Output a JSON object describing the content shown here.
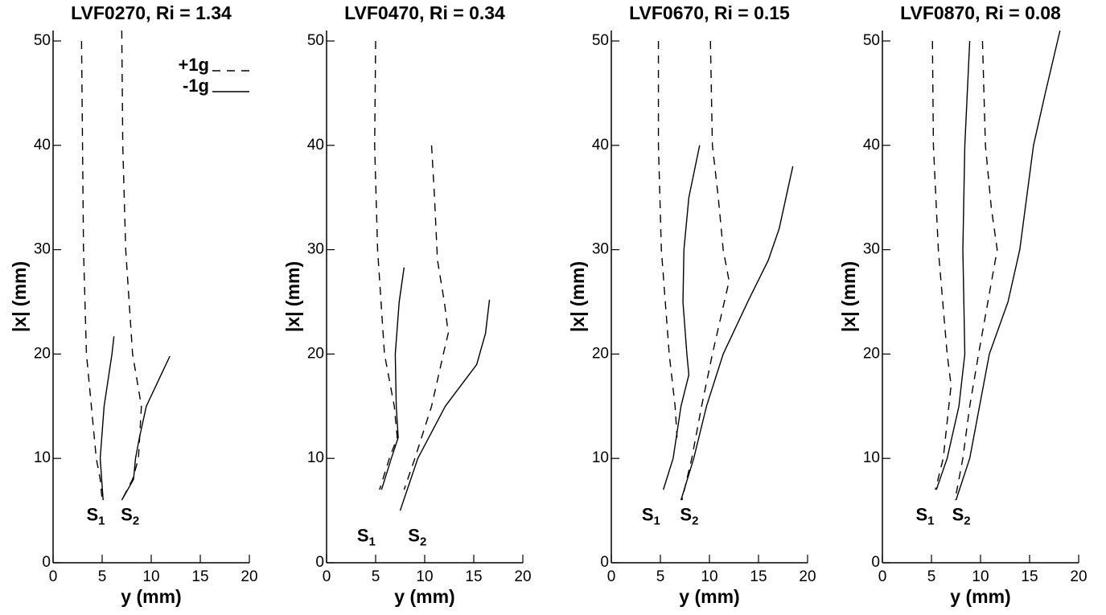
{
  "chart_data": [
    {
      "type": "line",
      "title": "LVF0270, Ri = 1.34",
      "xlabel": "y (mm)",
      "ylabel": "|x| (mm)",
      "xlim": [
        0,
        20
      ],
      "ylim": [
        0,
        51
      ],
      "xticks": [
        0,
        5,
        10,
        15,
        20
      ],
      "yticks": [
        0,
        10,
        20,
        30,
        40,
        50
      ],
      "legend": "top-right",
      "series": [
        {
          "name": "+1g",
          "color": "#000000",
          "dash": true,
          "x": [
            2.9,
            3.0,
            3.1,
            3.4,
            3.9,
            4.4,
            4.8,
            5.0
          ],
          "values": [
            50,
            40,
            30,
            20,
            15,
            10,
            8,
            6
          ]
        },
        {
          "color": "#000000",
          "dash": true,
          "x": [
            7.0,
            7.1,
            7.4,
            8.1,
            9.0,
            8.7,
            8.1,
            7.0
          ],
          "values": [
            51,
            40,
            30,
            20,
            15,
            10,
            8,
            6
          ]
        },
        {
          "name": "-1g",
          "color": "#000000",
          "dash": false,
          "x": [
            6.2,
            6.0,
            5.2,
            4.8,
            5.1
          ],
          "values": [
            21.7,
            20,
            15,
            10,
            6
          ]
        },
        {
          "color": "#000000",
          "dash": false,
          "x": [
            11.9,
            11.0,
            9.5,
            8.8,
            8.4,
            8.2,
            7.0
          ],
          "values": [
            19.8,
            18,
            15,
            12,
            10,
            8,
            6
          ]
        }
      ],
      "annotations": [
        {
          "text": "S",
          "subscript": "1",
          "x": 3.4,
          "y": 4.5
        },
        {
          "text": "S",
          "subscript": "2",
          "x": 6.9,
          "y": 4.5
        }
      ]
    },
    {
      "type": "line",
      "title": "LVF0470, Ri = 0.34",
      "xlabel": "y (mm)",
      "ylabel": "|x| (mm)",
      "xlim": [
        0,
        20
      ],
      "ylim": [
        0,
        51
      ],
      "xticks": [
        0,
        5,
        10,
        15,
        20
      ],
      "yticks": [
        0,
        10,
        20,
        30,
        40,
        50
      ],
      "series": [
        {
          "color": "#000000",
          "dash": true,
          "x": [
            5.0,
            4.9,
            5.2,
            5.9,
            6.9,
            7.2,
            6.4,
            5.4
          ],
          "values": [
            50,
            40,
            30,
            20,
            15,
            12,
            10,
            7
          ]
        },
        {
          "color": "#000000",
          "dash": false,
          "x": [
            7.9,
            7.4,
            7.0,
            7.1,
            7.3,
            6.6,
            5.6
          ],
          "values": [
            28.3,
            25,
            20,
            15,
            12,
            10,
            7
          ]
        },
        {
          "color": "#000000",
          "dash": true,
          "x": [
            10.7,
            11.0,
            11.3,
            12.0,
            12.4,
            11.9,
            10.7,
            9.0,
            7.9
          ],
          "values": [
            40,
            35,
            29,
            25,
            22,
            20,
            15,
            10,
            7
          ]
        },
        {
          "color": "#000000",
          "dash": false,
          "x": [
            16.6,
            16.2,
            15.3,
            13.7,
            12.1,
            9.3,
            7.5
          ],
          "values": [
            25.2,
            22,
            19,
            17,
            15,
            10,
            5
          ]
        }
      ],
      "annotations": [
        {
          "text": "S",
          "subscript": "1",
          "x": 3.1,
          "y": 2.5
        },
        {
          "text": "S",
          "subscript": "2",
          "x": 8.3,
          "y": 2.5
        }
      ]
    },
    {
      "type": "line",
      "title": "LVF0670, Ri = 0.15",
      "xlabel": "y (mm)",
      "ylabel": "|x| (mm)",
      "xlim": [
        0,
        20
      ],
      "ylim": [
        0,
        51
      ],
      "xticks": [
        0,
        5,
        10,
        15,
        20
      ],
      "yticks": [
        0,
        10,
        20,
        30,
        40,
        50
      ],
      "series": [
        {
          "color": "#000000",
          "dash": true,
          "x": [
            4.8,
            4.8,
            5.1,
            5.9,
            6.5,
            6.7
          ],
          "values": [
            50,
            40,
            30,
            20,
            15,
            12
          ]
        },
        {
          "color": "#000000",
          "dash": false,
          "x": [
            9.0,
            7.9,
            7.4,
            7.3,
            7.7,
            7.9,
            7.1,
            6.3,
            5.3
          ],
          "values": [
            40,
            35,
            30,
            25,
            20,
            18,
            15,
            10,
            7
          ]
        },
        {
          "color": "#000000",
          "dash": true,
          "x": [
            10.1,
            10.3,
            10.9,
            11.4,
            12.0,
            10.3,
            9.2,
            8.2,
            7.2
          ],
          "values": [
            50,
            40,
            35,
            30,
            27,
            20,
            15,
            10,
            6
          ]
        },
        {
          "color": "#000000",
          "dash": false,
          "x": [
            18.5,
            17.8,
            17.1,
            16.0,
            13.9,
            11.4,
            9.7,
            8.4,
            7.1
          ],
          "values": [
            38,
            35,
            32,
            29,
            25,
            20,
            15,
            10,
            6
          ]
        }
      ],
      "annotations": [
        {
          "text": "S",
          "subscript": "1",
          "x": 3.1,
          "y": 4.5
        },
        {
          "text": "S",
          "subscript": "2",
          "x": 7.0,
          "y": 4.5
        }
      ]
    },
    {
      "type": "line",
      "title": "LVF0870, Ri = 0.08",
      "xlabel": "y (mm)",
      "ylabel": "|x| (mm)",
      "xlim": [
        0,
        20
      ],
      "ylim": [
        0,
        51
      ],
      "xticks": [
        0,
        5,
        10,
        15,
        20
      ],
      "yticks": [
        0,
        10,
        20,
        30,
        40,
        50
      ],
      "series": [
        {
          "color": "#000000",
          "dash": true,
          "x": [
            5.1,
            5.2,
            5.7,
            6.6,
            7.0,
            6.2,
            5.4
          ],
          "values": [
            50,
            40,
            30,
            20,
            17,
            10,
            7
          ]
        },
        {
          "color": "#000000",
          "dash": false,
          "x": [
            8.9,
            8.4,
            8.2,
            8.4,
            7.8,
            6.6,
            5.5
          ],
          "values": [
            50,
            40,
            30,
            20,
            15,
            10,
            7
          ]
        },
        {
          "color": "#000000",
          "dash": true,
          "x": [
            10.2,
            10.5,
            11.1,
            11.7,
            9.8,
            8.9,
            8.2,
            7.4
          ],
          "values": [
            50,
            40,
            34,
            30,
            20,
            15,
            10,
            6
          ]
        },
        {
          "color": "#000000",
          "dash": false,
          "x": [
            18.1,
            16.6,
            15.4,
            14.0,
            12.8,
            10.9,
            9.9,
            8.9,
            7.5
          ],
          "values": [
            51,
            45,
            40,
            30,
            25,
            20,
            15,
            10,
            6
          ]
        }
      ],
      "annotations": [
        {
          "text": "S",
          "subscript": "1",
          "x": 3.4,
          "y": 4.5
        },
        {
          "text": "S",
          "subscript": "2",
          "x": 7.1,
          "y": 4.5
        }
      ]
    }
  ]
}
